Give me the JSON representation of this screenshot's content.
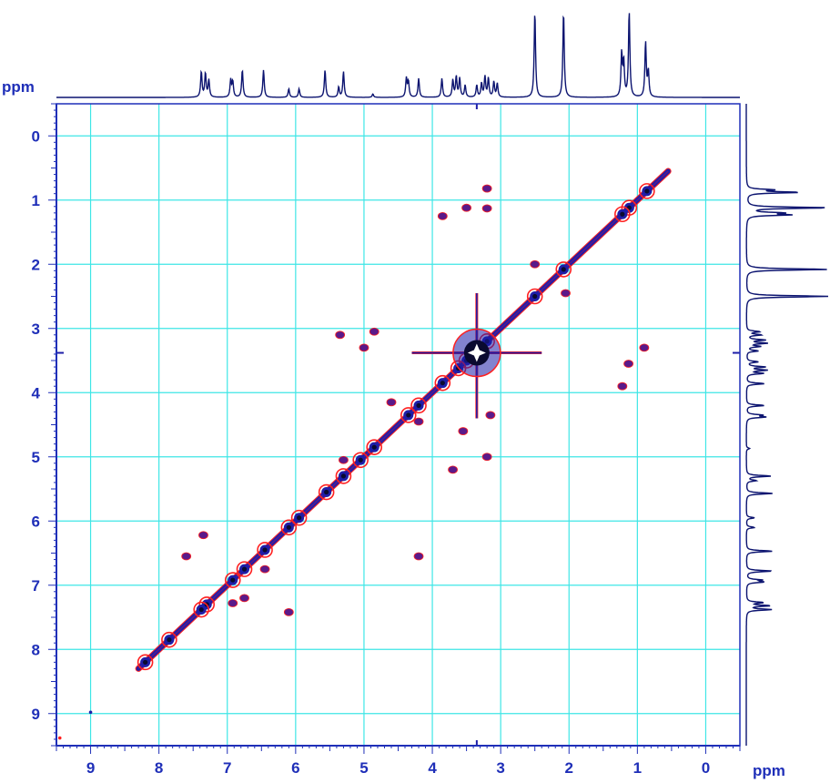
{
  "chart_data": {
    "type": "2D NMR contour (COSY) with 1D projections",
    "x_unit_label": "ppm",
    "y_unit_label": "ppm",
    "x_axis": {
      "range": [
        9.5,
        -0.5
      ],
      "reversed": true,
      "tick_labels": [
        "9",
        "8",
        "7",
        "6",
        "5",
        "4",
        "3",
        "2",
        "1",
        "0"
      ],
      "tick_values": [
        9,
        8,
        7,
        6,
        5,
        4,
        3,
        2,
        1,
        0
      ]
    },
    "y_axis": {
      "range": [
        -0.5,
        9.5
      ],
      "reversed": true,
      "tick_labels": [
        "0",
        "1",
        "2",
        "3",
        "4",
        "5",
        "6",
        "7",
        "8",
        "9"
      ],
      "tick_values": [
        0,
        1,
        2,
        3,
        4,
        5,
        6,
        7,
        8,
        9
      ]
    },
    "grid": true,
    "colors": {
      "axis": "#1f2fb8",
      "grid": "#3ee6e6",
      "contour_pos": "#1e1ea8",
      "contour_neg": "#ff2020",
      "contour_mid": "#5a1a8a",
      "trace": "#0c1470",
      "peak_core": "#0a0a30"
    },
    "diagonal_span_ppm": [
      0.55,
      8.3
    ],
    "diagonal_peaks_ppm": [
      0.86,
      1.12,
      1.22,
      2.08,
      2.5,
      3.2,
      3.35,
      3.5,
      3.62,
      3.85,
      4.2,
      4.35,
      4.85,
      5.05,
      5.3,
      5.55,
      5.95,
      6.1,
      6.45,
      6.75,
      6.92,
      7.3,
      7.38,
      7.85,
      8.2
    ],
    "cross_peaks_ppm": [
      {
        "x": 3.2,
        "y": 0.82
      },
      {
        "x": 3.2,
        "y": 1.13
      },
      {
        "x": 3.5,
        "y": 1.12
      },
      {
        "x": 3.85,
        "y": 1.25
      },
      {
        "x": 2.5,
        "y": 2.0
      },
      {
        "x": 2.05,
        "y": 2.45
      },
      {
        "x": 1.13,
        "y": 3.55
      },
      {
        "x": 0.9,
        "y": 3.3
      },
      {
        "x": 1.22,
        "y": 3.9
      },
      {
        "x": 3.15,
        "y": 4.35
      },
      {
        "x": 4.2,
        "y": 4.45
      },
      {
        "x": 3.55,
        "y": 4.6
      },
      {
        "x": 3.2,
        "y": 5.0
      },
      {
        "x": 3.7,
        "y": 5.2
      },
      {
        "x": 5.3,
        "y": 5.05
      },
      {
        "x": 4.2,
        "y": 6.55
      },
      {
        "x": 7.35,
        "y": 6.22
      },
      {
        "x": 6.45,
        "y": 6.75
      },
      {
        "x": 6.92,
        "y": 7.28
      },
      {
        "x": 6.1,
        "y": 7.42
      },
      {
        "x": 7.6,
        "y": 6.55
      },
      {
        "x": 6.75,
        "y": 7.2
      },
      {
        "x": 5.35,
        "y": 3.1
      },
      {
        "x": 5.0,
        "y": 3.3
      },
      {
        "x": 4.85,
        "y": 3.05
      },
      {
        "x": 4.6,
        "y": 4.15
      }
    ],
    "projection_peaks_ppm": [
      {
        "x": 7.38,
        "h": 0.3
      },
      {
        "x": 7.32,
        "h": 0.28
      },
      {
        "x": 7.27,
        "h": 0.2
      },
      {
        "x": 6.95,
        "h": 0.2
      },
      {
        "x": 6.92,
        "h": 0.18
      },
      {
        "x": 6.78,
        "h": 0.32
      },
      {
        "x": 6.47,
        "h": 0.32
      },
      {
        "x": 6.1,
        "h": 0.1
      },
      {
        "x": 5.95,
        "h": 0.1
      },
      {
        "x": 5.57,
        "h": 0.32
      },
      {
        "x": 5.37,
        "h": 0.12
      },
      {
        "x": 5.3,
        "h": 0.3
      },
      {
        "x": 4.87,
        "h": 0.04
      },
      {
        "x": 4.38,
        "h": 0.22
      },
      {
        "x": 4.35,
        "h": 0.18
      },
      {
        "x": 4.2,
        "h": 0.22
      },
      {
        "x": 3.86,
        "h": 0.22
      },
      {
        "x": 3.7,
        "h": 0.2
      },
      {
        "x": 3.65,
        "h": 0.24
      },
      {
        "x": 3.6,
        "h": 0.22
      },
      {
        "x": 3.52,
        "h": 0.14
      },
      {
        "x": 3.35,
        "h": 0.14
      },
      {
        "x": 3.28,
        "h": 0.16
      },
      {
        "x": 3.23,
        "h": 0.24
      },
      {
        "x": 3.18,
        "h": 0.22
      },
      {
        "x": 3.1,
        "h": 0.18
      },
      {
        "x": 3.05,
        "h": 0.16
      },
      {
        "x": 2.5,
        "h": 1.0
      },
      {
        "x": 2.08,
        "h": 1.0
      },
      {
        "x": 1.23,
        "h": 0.5
      },
      {
        "x": 1.2,
        "h": 0.4
      },
      {
        "x": 1.12,
        "h": 1.0
      },
      {
        "x": 0.88,
        "h": 0.64
      },
      {
        "x": 0.84,
        "h": 0.3
      }
    ]
  }
}
